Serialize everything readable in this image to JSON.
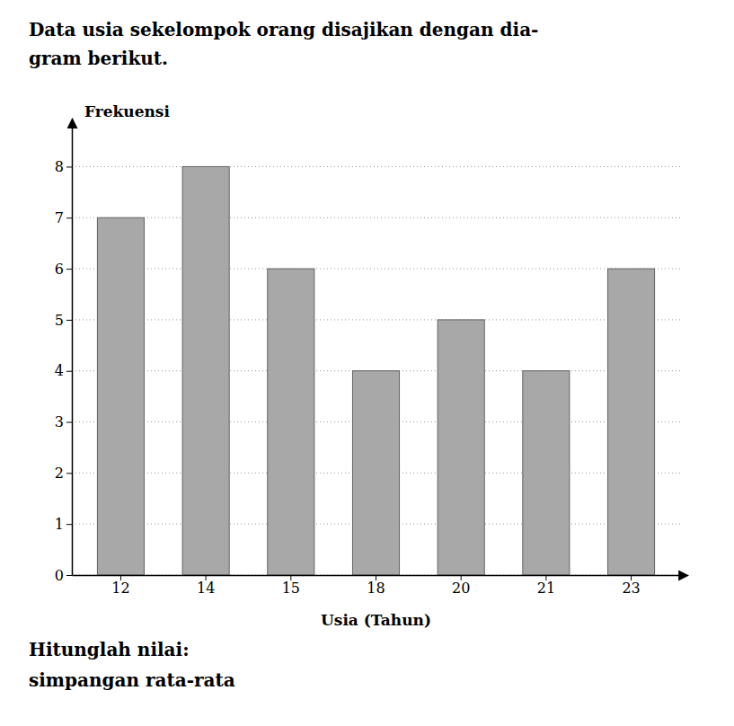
{
  "chart_data": {
    "type": "bar",
    "title": [
      "Data usia sekelompok orang disajikan dengan dia-",
      "gram berikut."
    ],
    "annotations": [
      "Hitunglah nilai:",
      "simpangan rata-rata"
    ],
    "categories": [
      "12",
      "14",
      "15",
      "18",
      "20",
      "21",
      "23"
    ],
    "values": [
      7,
      8,
      6,
      4,
      5,
      4,
      6
    ],
    "color": "#a8a8a8",
    "x_label": "Usia (Tahun)",
    "y_label": "Frekuensi",
    "ylim": [
      0,
      8.8
    ],
    "yticks": [
      0,
      1,
      2,
      3,
      4,
      5,
      6,
      7,
      8
    ],
    "grid": true
  }
}
